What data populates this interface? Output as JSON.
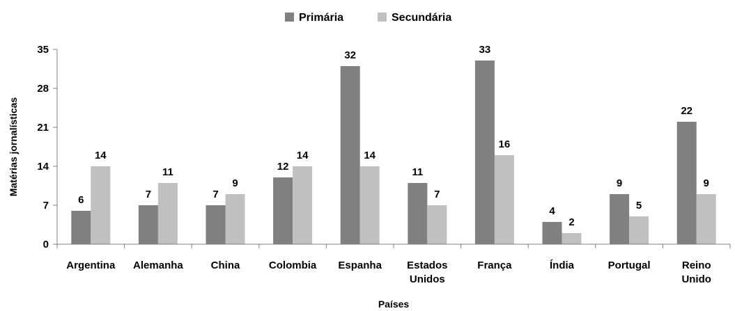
{
  "chart_data": {
    "type": "bar",
    "categories": [
      [
        "Argentina"
      ],
      [
        "Alemanha"
      ],
      [
        "China"
      ],
      [
        "Colombia"
      ],
      [
        "Espanha"
      ],
      [
        "Estados",
        "Unidos"
      ],
      [
        "França"
      ],
      [
        "Índia"
      ],
      [
        "Portugal"
      ],
      [
        "Reino",
        "Unido"
      ]
    ],
    "series": [
      {
        "name": "Primária",
        "color": "#808080",
        "values": [
          6,
          7,
          7,
          12,
          32,
          11,
          33,
          4,
          9,
          22
        ]
      },
      {
        "name": "Secundária",
        "color": "#c0c0c0",
        "values": [
          14,
          11,
          9,
          14,
          14,
          7,
          16,
          2,
          5,
          9
        ]
      }
    ],
    "xlabel": "Países",
    "ylabel": "Matérias jornalísticas",
    "ylim": [
      0,
      35
    ],
    "yticks": [
      0,
      7,
      14,
      21,
      28,
      35
    ],
    "legend": "top",
    "grid": false,
    "data_labels": true
  }
}
